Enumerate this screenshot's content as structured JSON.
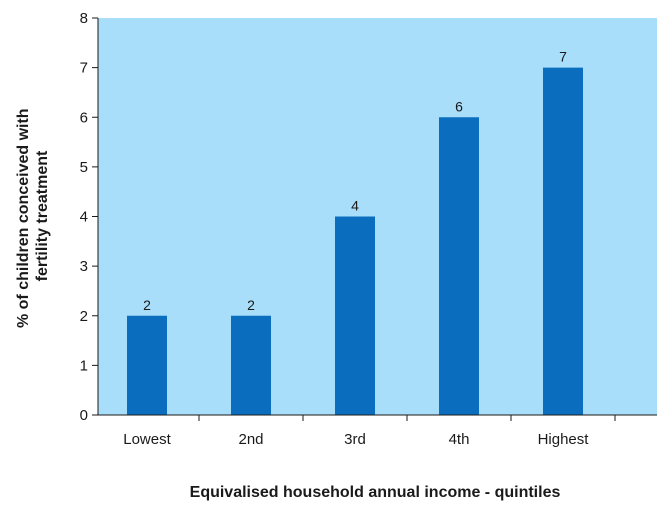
{
  "chart_data": {
    "type": "bar",
    "categories": [
      "Lowest",
      "2nd",
      "3rd",
      "4th",
      "Highest"
    ],
    "values": [
      2,
      2,
      4,
      6,
      7
    ],
    "data_labels": [
      "2",
      "2",
      "4",
      "6",
      "7"
    ],
    "yticks": [
      0,
      1,
      2,
      3,
      4,
      5,
      6,
      7,
      8
    ],
    "ylim": [
      0,
      8
    ],
    "title": "",
    "xlabel": "Equivalised household annual income - quintiles",
    "ylabel_lines": [
      "% of children conceived with",
      "fertility treatment"
    ],
    "grid": false,
    "colors": {
      "plot_background": "#a9defa",
      "bar": "#0b6dbd",
      "axis": "#1a1a1a"
    }
  }
}
